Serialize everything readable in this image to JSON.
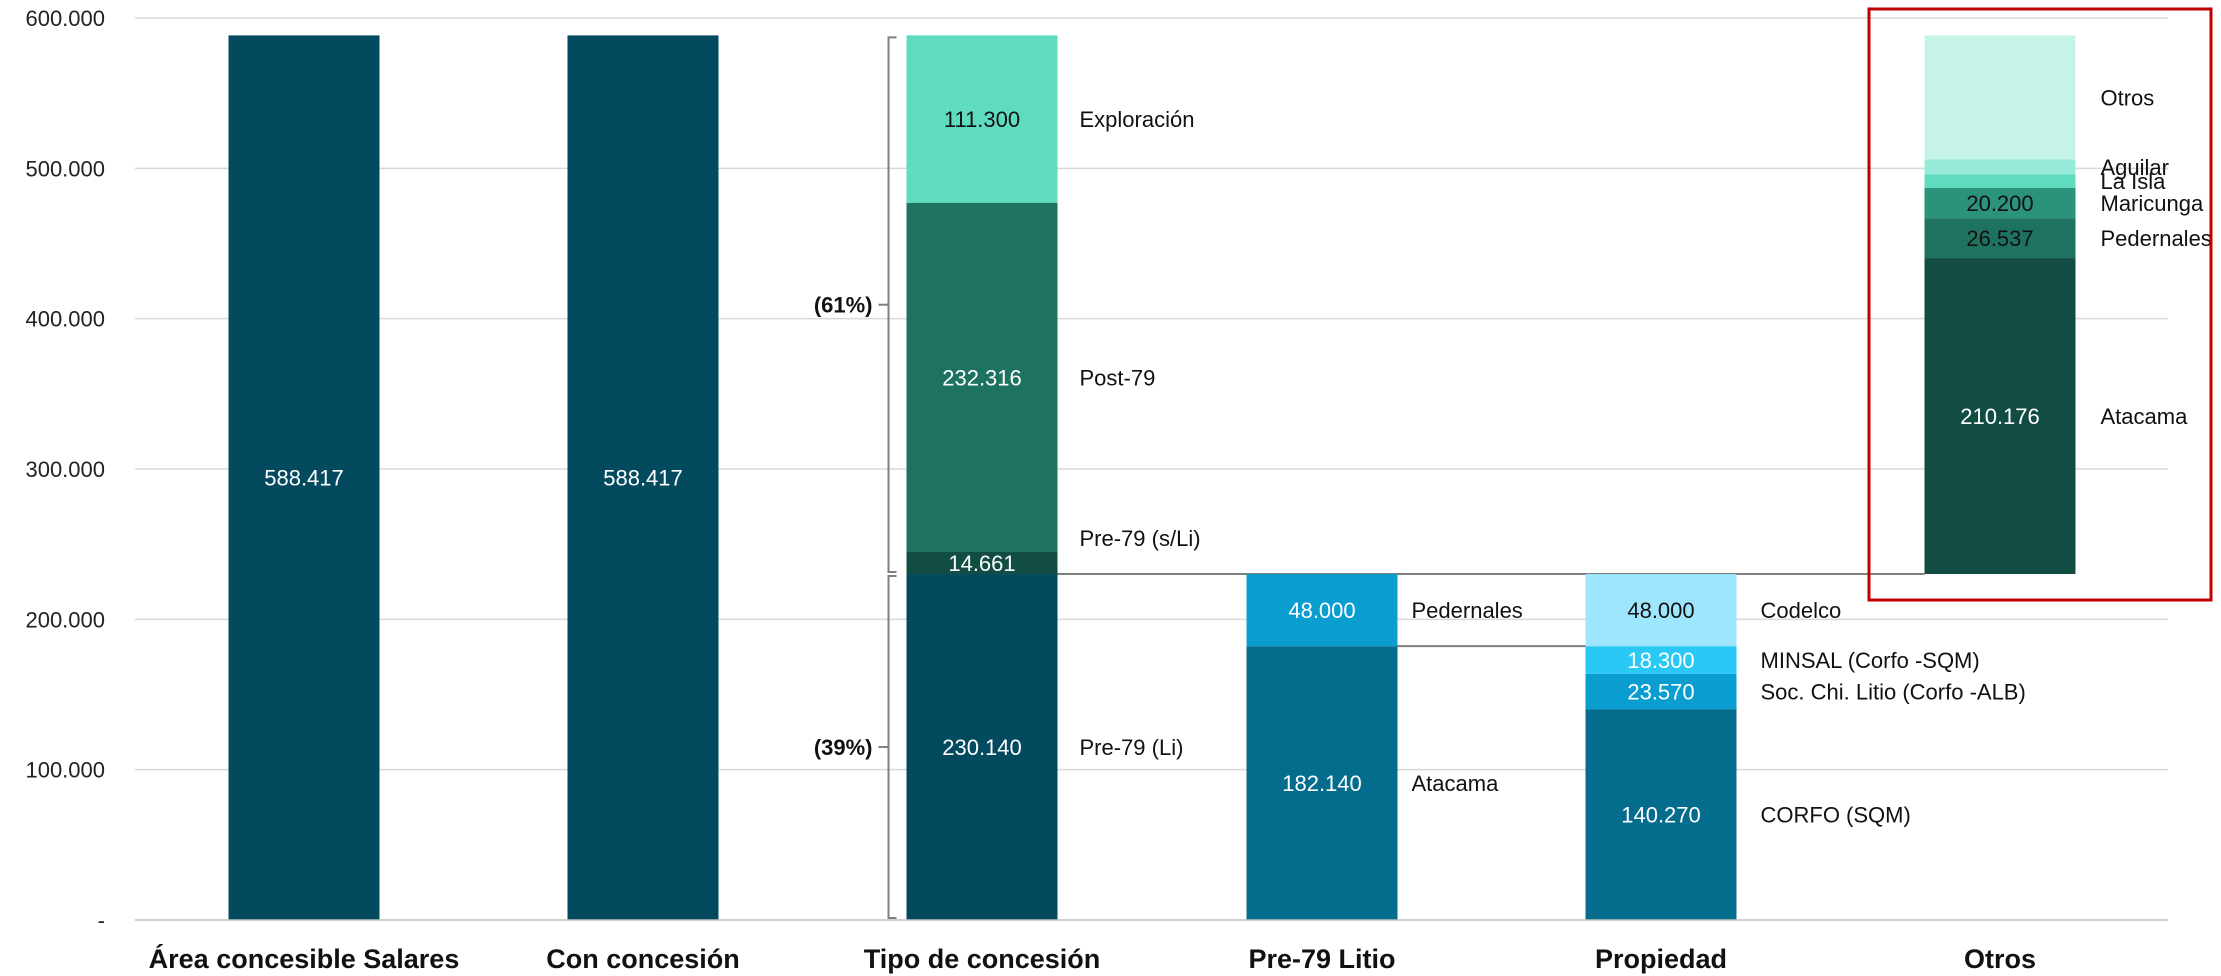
{
  "chart_data": {
    "type": "bar",
    "stacked": true,
    "title": "",
    "xlabel": "",
    "ylabel": "",
    "ylim": [
      0,
      600000
    ],
    "grid": true,
    "yticks": [
      {
        "value": 0,
        "label": "-"
      },
      {
        "value": 100000,
        "label": "100.000"
      },
      {
        "value": 200000,
        "label": "200.000"
      },
      {
        "value": 300000,
        "label": "300.000"
      },
      {
        "value": 400000,
        "label": "400.000"
      },
      {
        "value": 500000,
        "label": "500.000"
      },
      {
        "value": 600000,
        "label": "600.000"
      }
    ],
    "categories": [
      {
        "label": "Área concesible Salares",
        "segments": [
          {
            "value": 588417,
            "display": "588.417",
            "color": "#034a5e",
            "text_color": "#ffffff",
            "side": ""
          }
        ]
      },
      {
        "label": "Con concesión",
        "segments": [
          {
            "value": 588417,
            "display": "588.417",
            "color": "#034a5e",
            "text_color": "#ffffff",
            "side": ""
          }
        ]
      },
      {
        "label": "Tipo de concesión",
        "segments": [
          {
            "value": 230140,
            "display": "230.140",
            "color": "#034a5e",
            "text_color": "#ffffff",
            "side": "Pre-79 (Li)"
          },
          {
            "value": 14661,
            "display": "14.661",
            "color": "#124d43",
            "text_color": "#ffffff",
            "side": "Pre-79 (s/Li)"
          },
          {
            "value": 232316,
            "display": "232.316",
            "color": "#1d735f",
            "text_color": "#ffffff",
            "side": "Post-79"
          },
          {
            "value": 111300,
            "display": "111.300",
            "color": "#5fdcc0",
            "text_color": "#111111",
            "side": "Exploración"
          }
        ],
        "brackets": [
          {
            "from": 0,
            "to": 230140,
            "label": "(39%)"
          },
          {
            "from": 230140,
            "to": 588417,
            "label": "(61%)"
          }
        ]
      },
      {
        "label": "Pre-79 Litio",
        "segments": [
          {
            "value": 182140,
            "display": "182.140",
            "color": "#046c8c",
            "text_color": "#ffffff",
            "side": "Atacama"
          },
          {
            "value": 48000,
            "display": "48.000",
            "color": "#0a9ed0",
            "text_color": "#ffffff",
            "side": "Pedernales"
          }
        ]
      },
      {
        "label": "Propiedad",
        "segments": [
          {
            "value": 140270,
            "display": "140.270",
            "color": "#046c8c",
            "text_color": "#ffffff",
            "side": "CORFO (SQM)"
          },
          {
            "value": 23570,
            "display": "23.570",
            "color": "#0a9ed0",
            "text_color": "#ffffff",
            "side": "Soc. Chi. Litio (Corfo -ALB)"
          },
          {
            "value": 18300,
            "display": "18.300",
            "color": "#2ac9f5",
            "text_color": "#ffffff",
            "side": "MINSAL (Corfo -SQM)"
          },
          {
            "value": 48000,
            "display": "48.000",
            "color": "#9de6fd",
            "text_color": "#111111",
            "side": "Codelco"
          }
        ]
      },
      {
        "label": "Otros",
        "base": 230140,
        "segments": [
          {
            "value": 210176,
            "display": "210.176",
            "color": "#124d43",
            "text_color": "#ffffff",
            "side": "Atacama"
          },
          {
            "value": 26537,
            "display": "26.537",
            "color": "#1d735f",
            "text_color": "#111111",
            "side": "Pedernales"
          },
          {
            "value": 20200,
            "display": "20.200",
            "color": "#2a937a",
            "text_color": "#111111",
            "side": "Maricunga"
          },
          {
            "value": 9000,
            "display": "",
            "color": "#5fdcc0",
            "text_color": "#111111",
            "side": "La Isla"
          },
          {
            "value": 10000,
            "display": "",
            "color": "#98ead8",
            "text_color": "#111111",
            "side": "Aguilar"
          },
          {
            "value": 82364,
            "display": "",
            "color": "#c6f3e8",
            "text_color": "#111111",
            "side": "Otros"
          }
        ],
        "highlight_box": true,
        "highlight_color": "#c00000"
      }
    ]
  }
}
